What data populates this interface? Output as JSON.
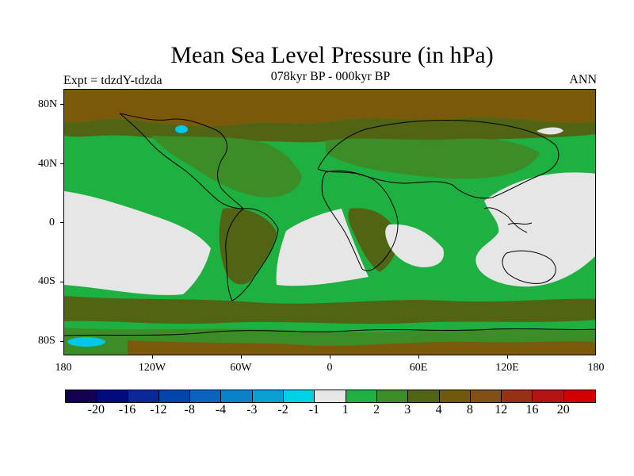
{
  "header": {
    "title": "Mean Sea Level Pressure (in hPa)",
    "subtitle": "078kyr BP - 000kyr BP",
    "left_label": "Expt = tdzdY-tdzda",
    "right_label": "ANN"
  },
  "map": {
    "lat_labels": [
      "80N",
      "40N",
      "0",
      "40S",
      "80S"
    ],
    "lon_labels": [
      "180",
      "120W",
      "60W",
      "0",
      "60E",
      "120E",
      "180"
    ],
    "colors": {
      "ocean_base": "#1eb040",
      "near_zero": "#e6e6e6",
      "dark_green": "#3c8c28",
      "olive": "#506414",
      "brown": "#7a5a0a",
      "cyan": "#00c8e6",
      "coast": "#000000"
    }
  },
  "colorbar": {
    "colors": [
      "#140050",
      "#000a78",
      "#0a2896",
      "#0046aa",
      "#0a64be",
      "#0a82c8",
      "#0aa0d2",
      "#00d2e6",
      "#e6e6e6",
      "#1eb040",
      "#3c8c28",
      "#506414",
      "#6e5a0a",
      "#825014",
      "#963214",
      "#b41414",
      "#d20000"
    ],
    "labels": [
      "-20",
      "-16",
      "-12",
      "-8",
      "-4",
      "-3",
      "-2",
      "-1",
      "1",
      "2",
      "3",
      "4",
      "8",
      "12",
      "16",
      "20"
    ]
  }
}
